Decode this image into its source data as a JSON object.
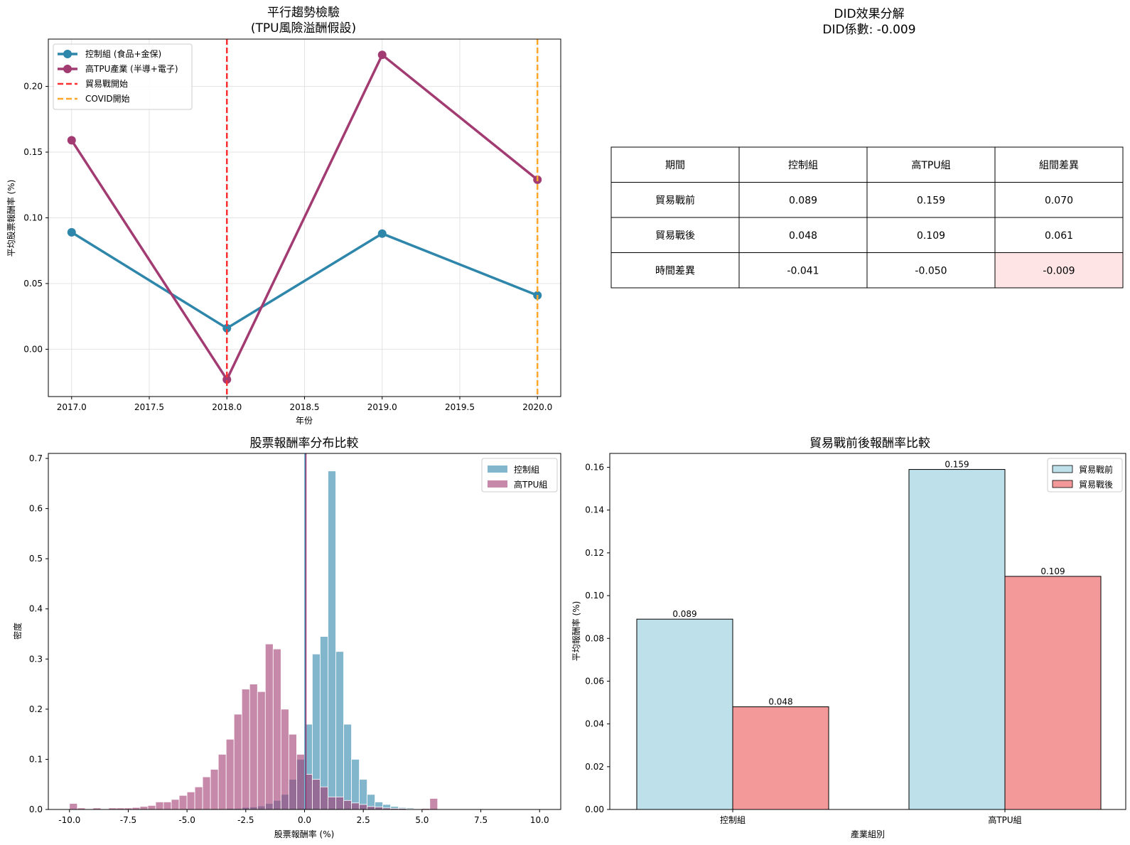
{
  "chart_data": [
    {
      "type": "line",
      "title": "平行趨勢檢驗\n(TPU風險溢酬假設)",
      "xlabel": "年份",
      "ylabel": "平均股票報酬率 (%)",
      "x": [
        2017,
        2018,
        2019,
        2020
      ],
      "xlim": [
        2016.85,
        2020.15
      ],
      "ylim": [
        -0.036,
        0.236
      ],
      "xticks": [
        2017.0,
        2017.5,
        2018.0,
        2018.5,
        2019.0,
        2019.5,
        2020.0
      ],
      "xtick_labels": [
        "2017.0",
        "2017.5",
        "2018.0",
        "2018.5",
        "2019.0",
        "2019.5",
        "2020.0"
      ],
      "yticks": [
        0.0,
        0.05,
        0.1,
        0.15,
        0.2
      ],
      "ytick_labels": [
        "0.00",
        "0.05",
        "0.10",
        "0.15",
        "0.20"
      ],
      "grid": true,
      "legend_position": "top-left",
      "series": [
        {
          "name": "控制組 (食品+金保)",
          "color": "#2E86AB",
          "values": [
            0.089,
            0.016,
            0.088,
            0.041
          ]
        },
        {
          "name": "高TPU產業 (半導+電子)",
          "color": "#A23B72",
          "values": [
            0.159,
            -0.023,
            0.224,
            0.129
          ]
        }
      ],
      "vlines": [
        {
          "name": "貿易戰開始",
          "x": 2018,
          "color": "#FF3030"
        },
        {
          "name": "COVID開始",
          "x": 2020,
          "color": "#FFA62B"
        }
      ]
    },
    {
      "type": "table",
      "title": "DID效果分解\nDID係數: -0.009",
      "columns": [
        "期間",
        "控制組",
        "高TPU組",
        "組間差異"
      ],
      "rows": [
        [
          "貿易戰前",
          "0.089",
          "0.159",
          "0.070"
        ],
        [
          "貿易戰後",
          "0.048",
          "0.109",
          "0.061"
        ],
        [
          "時間差異",
          "-0.041",
          "-0.050",
          "-0.009"
        ]
      ],
      "highlight_color": "#FFE4E6"
    },
    {
      "type": "bar",
      "title": "股票報酬率分布比較",
      "xlabel": "股票報酬率 (%)",
      "ylabel": "密度",
      "xlim": [
        -10.9,
        10.9
      ],
      "ylim": [
        0,
        0.71
      ],
      "xticks": [
        -10,
        -7.5,
        -5,
        -2.5,
        0,
        2.5,
        5,
        7.5,
        10
      ],
      "xtick_labels": [
        "-10.0",
        "-7.5",
        "-5.0",
        "-2.5",
        "0.0",
        "2.5",
        "5.0",
        "7.5",
        "10.0"
      ],
      "yticks": [
        0,
        0.1,
        0.2,
        0.3,
        0.4,
        0.5,
        0.6,
        0.7
      ],
      "ytick_labels": [
        "0.0",
        "0.1",
        "0.2",
        "0.3",
        "0.4",
        "0.5",
        "0.6",
        "0.7"
      ],
      "legend_position": "top-right",
      "bin_edges": [
        -10.0,
        9.995
      ],
      "series": [
        {
          "name": "控制組",
          "color": "#2E86AB",
          "values": [
            0.0,
            0.0,
            0.0,
            0.0,
            0.0,
            0.0,
            0.0,
            0.0,
            0.0,
            0.0,
            0.0,
            0.0,
            0.0,
            0.0,
            0.0,
            0.0,
            0.0,
            0.0,
            0.0,
            0.0,
            0.002,
            0.002,
            0.004,
            0.005,
            0.007,
            0.012,
            0.018,
            0.03,
            0.06,
            0.1,
            0.17,
            0.31,
            0.345,
            0.675,
            0.315,
            0.17,
            0.1,
            0.06,
            0.03,
            0.015,
            0.01,
            0.006,
            0.004,
            0.003,
            0.002,
            0.001,
            0.0,
            0.0,
            0.0,
            0.0,
            0.0,
            0.0,
            0.0,
            0.0,
            0.0,
            0.0,
            0.0,
            0.0,
            0.0,
            0.0
          ]
        },
        {
          "name": "高TPU組",
          "color": "#A23B72",
          "values": [
            0.012,
            0.003,
            0.0,
            0.003,
            0.0,
            0.003,
            0.003,
            0.003,
            0.004,
            0.006,
            0.008,
            0.015,
            0.015,
            0.02,
            0.028,
            0.035,
            0.045,
            0.065,
            0.08,
            0.11,
            0.14,
            0.19,
            0.24,
            0.25,
            0.235,
            0.33,
            0.32,
            0.2,
            0.15,
            0.11,
            0.07,
            0.06,
            0.045,
            0.025,
            0.025,
            0.018,
            0.013,
            0.01,
            0.006,
            0.005,
            0.003,
            0.002,
            0.002,
            0.001,
            0.001,
            0.002,
            0.022,
            0.0,
            0.0,
            0.0,
            0.0,
            0.0,
            0.0,
            0.0,
            0.0,
            0.0,
            0.0,
            0.0,
            0.0,
            0.0
          ]
        }
      ]
    },
    {
      "type": "bar",
      "title": "貿易戰前後報酬率比較",
      "xlabel": "產業組別",
      "ylabel": "平均報酬率 (%)",
      "categories": [
        "控制組",
        "高TPU組"
      ],
      "ylim": [
        0,
        0.1665
      ],
      "yticks": [
        0.0,
        0.02,
        0.04,
        0.06,
        0.08,
        0.1,
        0.12,
        0.14,
        0.16
      ],
      "ytick_labels": [
        "0.00",
        "0.02",
        "0.04",
        "0.06",
        "0.08",
        "0.10",
        "0.12",
        "0.14",
        "0.16"
      ],
      "legend_position": "top-right",
      "series": [
        {
          "name": "貿易戰前",
          "color": "#ADD8E6",
          "values": [
            0.089,
            0.159
          ],
          "labels": [
            "0.089",
            "0.159"
          ]
        },
        {
          "name": "貿易戰後",
          "color": "#F08080",
          "values": [
            0.048,
            0.109
          ],
          "labels": [
            "0.048",
            "0.109"
          ]
        }
      ]
    }
  ]
}
